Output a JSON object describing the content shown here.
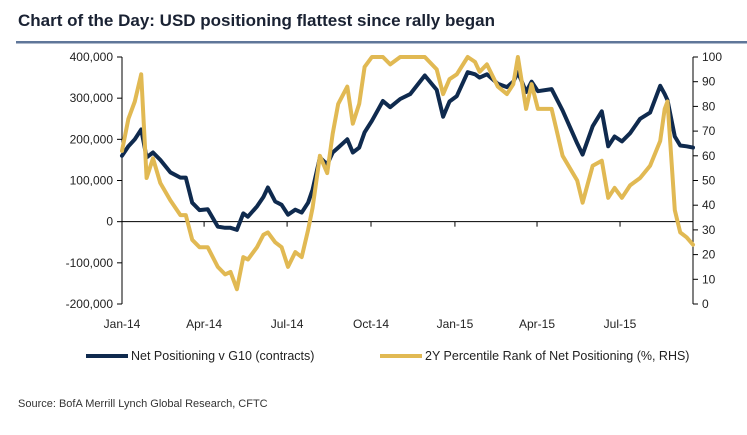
{
  "title": "Chart of the Day: USD positioning flattest since rally began",
  "source": "Source: BofA Merrill Lynch Global Research, CFTC",
  "colors": {
    "navy": "#0f2a4e",
    "gold": "#e1b953",
    "rule": "#5f7699"
  },
  "chart_data": {
    "type": "line",
    "title": "Chart of the Day: USD positioning flattest since rally began",
    "xlim": [
      "2014-01-01",
      "2015-09-19"
    ],
    "ylim": [
      -200000,
      400000
    ],
    "y2lim": [
      0,
      100
    ],
    "grid": false,
    "legend": "bottom",
    "x_ticks": [
      {
        "date": "2014-01-01",
        "label": "Jan-14"
      },
      {
        "date": "2014-04-01",
        "label": "Apr-14"
      },
      {
        "date": "2014-07-01",
        "label": "Jul-14"
      },
      {
        "date": "2014-10-01",
        "label": "Oct-14"
      },
      {
        "date": "2015-01-01",
        "label": "Jan-15"
      },
      {
        "date": "2015-04-01",
        "label": "Apr-15"
      },
      {
        "date": "2015-07-01",
        "label": "Jul-15"
      }
    ],
    "y_ticks": [
      {
        "value": 400000,
        "label": "400,000"
      },
      {
        "value": 300000,
        "label": "300,000"
      },
      {
        "value": 200000,
        "label": "200,000"
      },
      {
        "value": 100000,
        "label": "100,000"
      },
      {
        "value": 0,
        "label": "0"
      },
      {
        "value": -100000,
        "label": "-100,000"
      },
      {
        "value": -200000,
        "label": "-200,000"
      }
    ],
    "y2_ticks": [
      {
        "value": 100,
        "label": "100"
      },
      {
        "value": 90,
        "label": "90"
      },
      {
        "value": 80,
        "label": "80"
      },
      {
        "value": 70,
        "label": "70"
      },
      {
        "value": 60,
        "label": "60"
      },
      {
        "value": 50,
        "label": "50"
      },
      {
        "value": 40,
        "label": "40"
      },
      {
        "value": 30,
        "label": "30"
      },
      {
        "value": 20,
        "label": "20"
      },
      {
        "value": 10,
        "label": "10"
      },
      {
        "value": 0,
        "label": "0"
      }
    ],
    "x": [
      "2014-01-01",
      "2014-01-08",
      "2014-01-15",
      "2014-01-22",
      "2014-01-28",
      "2014-02-04",
      "2014-02-12",
      "2014-02-23",
      "2014-03-06",
      "2014-03-12",
      "2014-03-19",
      "2014-03-27",
      "2014-04-05",
      "2014-04-16",
      "2014-04-24",
      "2014-04-30",
      "2014-05-07",
      "2014-05-14",
      "2014-05-19",
      "2014-05-29",
      "2014-06-05",
      "2014-06-10",
      "2014-06-18",
      "2014-06-25",
      "2014-07-02",
      "2014-07-10",
      "2014-07-17",
      "2014-07-24",
      "2014-07-29",
      "2014-08-06",
      "2014-08-14",
      "2014-08-20",
      "2014-08-26",
      "2014-09-05",
      "2014-09-11",
      "2014-09-18",
      "2014-09-24",
      "2014-10-02",
      "2014-10-09",
      "2014-10-14",
      "2014-10-22",
      "2014-11-02",
      "2014-11-13",
      "2014-11-29",
      "2014-12-12",
      "2014-12-19",
      "2014-12-26",
      "2015-01-03",
      "2015-01-15",
      "2015-01-23",
      "2015-01-28",
      "2015-02-05",
      "2015-02-17",
      "2015-02-27",
      "2015-03-06",
      "2015-03-11",
      "2015-03-20",
      "2015-03-26",
      "2015-04-02",
      "2015-04-17",
      "2015-04-29",
      "2015-05-15",
      "2015-05-21",
      "2015-06-01",
      "2015-06-11",
      "2015-06-18",
      "2015-06-25",
      "2015-07-03",
      "2015-07-12",
      "2015-07-23",
      "2015-08-03",
      "2015-08-14",
      "2015-08-19",
      "2015-08-22",
      "2015-08-30",
      "2015-09-05",
      "2015-09-12",
      "2015-09-19"
    ],
    "series": [
      {
        "name": "Net Positioning v G10 (contracts)",
        "axis": "left",
        "color": "#0f2a4e",
        "values": [
          160000,
          183000,
          200000,
          224000,
          156000,
          168000,
          150000,
          120000,
          107000,
          107000,
          46000,
          28000,
          30000,
          -12000,
          -15000,
          -15000,
          -20000,
          20000,
          12000,
          37000,
          60000,
          83000,
          49000,
          41000,
          17000,
          29000,
          22000,
          46000,
          78000,
          156000,
          139000,
          168000,
          180000,
          200000,
          168000,
          180000,
          217000,
          245000,
          273000,
          293000,
          278000,
          298000,
          310000,
          355000,
          320000,
          255000,
          292000,
          305000,
          363000,
          358000,
          350000,
          358000,
          335000,
          327000,
          340000,
          363000,
          315000,
          340000,
          317000,
          322000,
          270000,
          190000,
          163000,
          232000,
          268000,
          183000,
          207000,
          195000,
          215000,
          250000,
          265000,
          330000,
          310000,
          295000,
          207000,
          185000,
          183000,
          180000
        ]
      },
      {
        "name": "2Y Percentile Rank of Net Positioning (%, RHS)",
        "axis": "right",
        "color": "#e1b953",
        "values": [
          62,
          75,
          82,
          93,
          51,
          59,
          49,
          42,
          36,
          36,
          26,
          23,
          23,
          15,
          12,
          13,
          6,
          19,
          18,
          23,
          28,
          29,
          25,
          23,
          15,
          21,
          19,
          30,
          39,
          60,
          53,
          69,
          81,
          88,
          73,
          81,
          96,
          100,
          100,
          100,
          97,
          100,
          100,
          100,
          95,
          85,
          91,
          93,
          100,
          98,
          94,
          97,
          88,
          85,
          89,
          100,
          79,
          89,
          79,
          79,
          60,
          50,
          41,
          56,
          58,
          43,
          47,
          43,
          48,
          51,
          56,
          66,
          79,
          82,
          38,
          29,
          27,
          24
        ]
      }
    ]
  }
}
